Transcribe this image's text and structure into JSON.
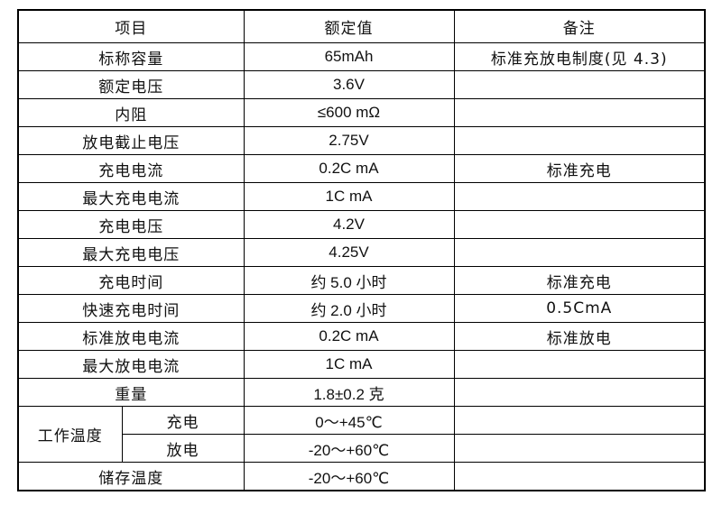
{
  "headers": [
    "项目",
    "额定值",
    "备注"
  ],
  "rows": [
    {
      "item": "标称容量",
      "value": "65mAh",
      "note": "标准充放电制度(见 4.3)"
    },
    {
      "item": "额定电压",
      "value": "3.6V",
      "note": ""
    },
    {
      "item": "内阻",
      "value": "≤600 mΩ",
      "note": ""
    },
    {
      "item": "放电截止电压",
      "value": "2.75V",
      "note": ""
    },
    {
      "item": "充电电流",
      "value": "0.2C mA",
      "note": "标准充电"
    },
    {
      "item": "最大充电电流",
      "value": "1C mA",
      "note": ""
    },
    {
      "item": "充电电压",
      "value": "4.2V",
      "note": ""
    },
    {
      "item": "最大充电电压",
      "value": "4.25V",
      "note": ""
    },
    {
      "item": "充电时间",
      "value": "约 5.0 小时",
      "note": "标准充电"
    },
    {
      "item": "快速充电时间",
      "value": "约 2.0 小时",
      "note": "0.5CmA"
    },
    {
      "item": "标准放电电流",
      "value": "0.2C mA",
      "note": "标准放电"
    },
    {
      "item": "最大放电电流",
      "value": "1C mA",
      "note": ""
    },
    {
      "item": "重量",
      "value": "1.8±0.2 克",
      "note": ""
    }
  ],
  "operating_temp": {
    "label": "工作温度",
    "sub": [
      {
        "item": "充电",
        "value": "0～+45℃",
        "note": ""
      },
      {
        "item": "放电",
        "value": "-20～+60℃",
        "note": ""
      }
    ]
  },
  "storage_temp": {
    "item": "储存温度",
    "value": "-20～+60℃",
    "note": ""
  }
}
